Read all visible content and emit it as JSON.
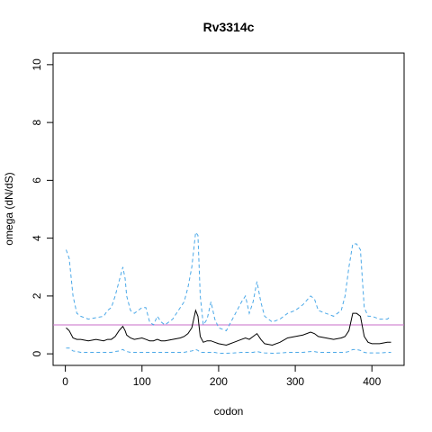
{
  "chart_data": {
    "type": "line",
    "title": "Rv3314c",
    "xlabel": "codon",
    "ylabel": "omega (dN/dS)",
    "x": [
      1,
      5,
      10,
      15,
      20,
      30,
      40,
      50,
      55,
      60,
      65,
      70,
      75,
      78,
      80,
      85,
      90,
      100,
      105,
      110,
      115,
      120,
      125,
      130,
      140,
      150,
      155,
      160,
      165,
      170,
      173,
      176,
      180,
      185,
      190,
      195,
      200,
      210,
      220,
      230,
      235,
      240,
      245,
      250,
      255,
      260,
      270,
      280,
      290,
      300,
      310,
      320,
      325,
      330,
      340,
      350,
      360,
      365,
      370,
      375,
      380,
      385,
      390,
      395,
      400,
      410,
      420,
      425
    ],
    "series": [
      {
        "color": "#4aa8e8",
        "linestyle": "dashed",
        "values": [
          3.6,
          3.3,
          2.0,
          1.4,
          1.3,
          1.2,
          1.25,
          1.3,
          1.5,
          1.6,
          2.0,
          2.5,
          3.0,
          2.6,
          2.0,
          1.5,
          1.4,
          1.6,
          1.6,
          1.1,
          1.0,
          1.3,
          1.1,
          1.0,
          1.2,
          1.6,
          1.8,
          2.3,
          3.0,
          4.2,
          4.1,
          2.0,
          1.0,
          1.2,
          1.8,
          1.2,
          0.9,
          0.8,
          1.3,
          1.8,
          2.0,
          1.4,
          1.8,
          2.5,
          1.8,
          1.3,
          1.1,
          1.2,
          1.4,
          1.5,
          1.7,
          2.0,
          1.9,
          1.5,
          1.4,
          1.3,
          1.5,
          2.0,
          3.0,
          3.8,
          3.8,
          3.6,
          1.6,
          1.3,
          1.3,
          1.2,
          1.2,
          1.3
        ]
      },
      {
        "color": "#000000",
        "linestyle": "solid",
        "values": [
          0.9,
          0.8,
          0.55,
          0.5,
          0.5,
          0.45,
          0.5,
          0.45,
          0.5,
          0.5,
          0.6,
          0.8,
          0.95,
          0.8,
          0.65,
          0.55,
          0.5,
          0.55,
          0.5,
          0.45,
          0.45,
          0.5,
          0.45,
          0.45,
          0.5,
          0.55,
          0.6,
          0.7,
          0.9,
          1.5,
          1.3,
          0.6,
          0.4,
          0.45,
          0.45,
          0.4,
          0.35,
          0.3,
          0.4,
          0.5,
          0.55,
          0.5,
          0.6,
          0.7,
          0.5,
          0.35,
          0.3,
          0.4,
          0.55,
          0.6,
          0.65,
          0.75,
          0.7,
          0.6,
          0.55,
          0.5,
          0.55,
          0.6,
          0.8,
          1.4,
          1.4,
          1.3,
          0.6,
          0.4,
          0.35,
          0.35,
          0.4,
          0.4
        ]
      },
      {
        "color": "#4aa8e8",
        "linestyle": "dashed",
        "values": [
          0.2,
          0.2,
          0.1,
          0.08,
          0.05,
          0.05,
          0.05,
          0.05,
          0.05,
          0.05,
          0.08,
          0.1,
          0.15,
          0.1,
          0.08,
          0.05,
          0.05,
          0.05,
          0.05,
          0.05,
          0.05,
          0.05,
          0.05,
          0.05,
          0.05,
          0.05,
          0.05,
          0.08,
          0.1,
          0.15,
          0.12,
          0.05,
          0.05,
          0.05,
          0.05,
          0.05,
          0.02,
          0.02,
          0.03,
          0.05,
          0.05,
          0.05,
          0.05,
          0.08,
          0.05,
          0.03,
          0.02,
          0.03,
          0.05,
          0.05,
          0.05,
          0.08,
          0.08,
          0.05,
          0.05,
          0.05,
          0.05,
          0.05,
          0.08,
          0.15,
          0.15,
          0.12,
          0.05,
          0.03,
          0.03,
          0.03,
          0.05,
          0.05
        ]
      }
    ],
    "hline": {
      "value": 1,
      "color": "#c86ec8"
    },
    "xlim": [
      -16,
      442
    ],
    "xticks": [
      0,
      100,
      200,
      300,
      400
    ],
    "ylim": [
      -0.4,
      10.4
    ],
    "yticks": [
      0,
      2,
      4,
      6,
      8,
      10
    ],
    "grid": false
  }
}
